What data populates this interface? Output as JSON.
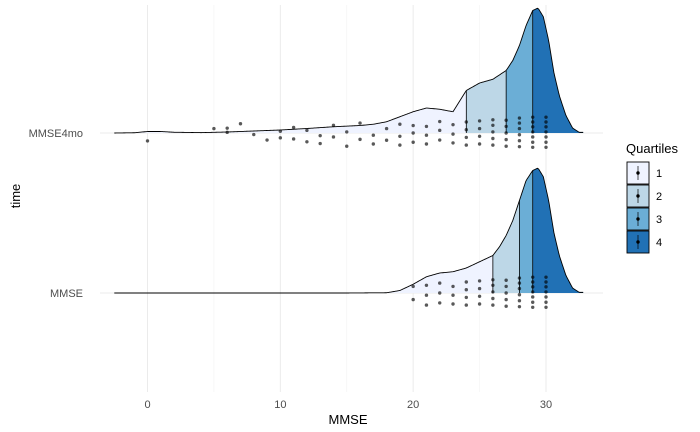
{
  "chart_data": {
    "type": "raincloud",
    "title": "",
    "xlabel": "MMSE",
    "ylabel": "time",
    "xlim": [
      -2.5,
      32.8
    ],
    "x_ticks": [
      0,
      10,
      20,
      30
    ],
    "grid": true,
    "legend": {
      "title": "Quartiles",
      "position": "right",
      "entries": [
        {
          "label": "1",
          "color": "#eff3ff"
        },
        {
          "label": "2",
          "color": "#bdd7e7"
        },
        {
          "label": "3",
          "color": "#6baed6"
        },
        {
          "label": "4",
          "color": "#2171b5"
        }
      ]
    },
    "groups": [
      {
        "name": "MMSE4mo",
        "quartile_breaks": [
          24,
          27,
          29
        ],
        "density": [
          [
            -2.5,
            0
          ],
          [
            -1,
            0.002
          ],
          [
            0,
            0.012
          ],
          [
            1,
            0.012
          ],
          [
            2,
            0.006
          ],
          [
            4,
            0.003
          ],
          [
            6,
            0.008
          ],
          [
            8,
            0.016
          ],
          [
            10,
            0.024
          ],
          [
            12,
            0.036
          ],
          [
            14,
            0.05
          ],
          [
            16,
            0.06
          ],
          [
            17,
            0.07
          ],
          [
            18,
            0.09
          ],
          [
            19,
            0.13
          ],
          [
            20,
            0.17
          ],
          [
            21,
            0.2
          ],
          [
            22,
            0.19
          ],
          [
            23,
            0.17
          ],
          [
            24,
            0.34
          ],
          [
            25,
            0.4
          ],
          [
            26,
            0.43
          ],
          [
            27,
            0.5
          ],
          [
            27.5,
            0.58
          ],
          [
            28,
            0.7
          ],
          [
            28.5,
            0.86
          ],
          [
            29,
            0.98
          ],
          [
            29.4,
            1.0
          ],
          [
            29.8,
            0.93
          ],
          [
            30.2,
            0.74
          ],
          [
            30.6,
            0.48
          ],
          [
            31,
            0.3
          ],
          [
            31.5,
            0.14
          ],
          [
            32,
            0.04
          ],
          [
            32.5,
            0.005
          ]
        ],
        "points": [
          [
            0,
            0.36
          ],
          [
            5,
            -0.2
          ],
          [
            6,
            -0.03
          ],
          [
            6,
            -0.22
          ],
          [
            7,
            -0.42
          ],
          [
            8,
            0.07
          ],
          [
            9,
            0.32
          ],
          [
            10,
            -0.08
          ],
          [
            10,
            0.22
          ],
          [
            11,
            -0.25
          ],
          [
            11,
            0.27
          ],
          [
            12,
            0.4
          ],
          [
            12,
            -0.12
          ],
          [
            13,
            0.48
          ],
          [
            13,
            0.12
          ],
          [
            14,
            -0.35
          ],
          [
            14,
            0.18
          ],
          [
            15,
            0.6
          ],
          [
            15,
            -0.05
          ],
          [
            16,
            0.29
          ],
          [
            16,
            -0.45
          ],
          [
            17,
            0.1
          ],
          [
            17,
            0.5
          ],
          [
            18,
            -0.2
          ],
          [
            18,
            0.33
          ],
          [
            19,
            0.15
          ],
          [
            19,
            -0.4
          ],
          [
            19,
            0.55
          ],
          [
            20,
            0.42
          ],
          [
            20,
            0.0
          ],
          [
            20,
            -0.34
          ],
          [
            21,
            0.5
          ],
          [
            21,
            0.1
          ],
          [
            21,
            -0.3
          ],
          [
            22,
            0.32
          ],
          [
            22,
            -0.12
          ],
          [
            22,
            -0.52
          ],
          [
            23,
            0.45
          ],
          [
            23,
            0.05
          ],
          [
            23,
            -0.38
          ],
          [
            24,
            0.55
          ],
          [
            24,
            0.2
          ],
          [
            24,
            -0.15
          ],
          [
            24,
            -0.5
          ],
          [
            25,
            0.5
          ],
          [
            25,
            0.15
          ],
          [
            25,
            -0.2
          ],
          [
            25,
            -0.55
          ],
          [
            26,
            0.55
          ],
          [
            26,
            0.25
          ],
          [
            26,
            -0.05
          ],
          [
            26,
            -0.35
          ],
          [
            26,
            -0.6
          ],
          [
            27,
            0.6
          ],
          [
            27,
            0.3
          ],
          [
            27,
            0.0
          ],
          [
            27,
            -0.3
          ],
          [
            27,
            -0.58
          ],
          [
            28,
            0.62
          ],
          [
            28,
            0.35
          ],
          [
            28,
            0.08
          ],
          [
            28,
            -0.2
          ],
          [
            28,
            -0.45
          ],
          [
            28,
            -0.68
          ],
          [
            29,
            0.65
          ],
          [
            29,
            0.42
          ],
          [
            29,
            0.18
          ],
          [
            29,
            -0.05
          ],
          [
            29,
            -0.28
          ],
          [
            29,
            -0.5
          ],
          [
            29,
            -0.72
          ],
          [
            30,
            0.65
          ],
          [
            30,
            0.42
          ],
          [
            30,
            0.18
          ],
          [
            30,
            -0.05
          ],
          [
            30,
            -0.28
          ],
          [
            30,
            -0.5
          ],
          [
            30,
            -0.72
          ]
        ]
      },
      {
        "name": "MMSE",
        "quartile_breaks": [
          26,
          28,
          29
        ],
        "density": [
          [
            -2.5,
            0
          ],
          [
            5,
            0
          ],
          [
            10,
            0
          ],
          [
            15,
            0
          ],
          [
            18,
            0.002
          ],
          [
            19,
            0.02
          ],
          [
            20,
            0.07
          ],
          [
            21,
            0.13
          ],
          [
            22,
            0.16
          ],
          [
            23,
            0.17
          ],
          [
            24,
            0.2
          ],
          [
            25,
            0.25
          ],
          [
            26,
            0.3
          ],
          [
            26.5,
            0.37
          ],
          [
            27,
            0.46
          ],
          [
            27.5,
            0.58
          ],
          [
            28,
            0.74
          ],
          [
            28.5,
            0.9
          ],
          [
            29,
            0.98
          ],
          [
            29.4,
            1.0
          ],
          [
            29.8,
            0.93
          ],
          [
            30.2,
            0.74
          ],
          [
            30.6,
            0.48
          ],
          [
            31,
            0.3
          ],
          [
            31.5,
            0.14
          ],
          [
            32,
            0.04
          ],
          [
            32.5,
            0.005
          ]
        ],
        "points": [
          [
            20,
            0.3
          ],
          [
            20,
            -0.3
          ],
          [
            21,
            0.55
          ],
          [
            21,
            0.1
          ],
          [
            21,
            -0.35
          ],
          [
            22,
            0.45
          ],
          [
            22,
            0.0
          ],
          [
            22,
            -0.45
          ],
          [
            23,
            0.5
          ],
          [
            23,
            0.1
          ],
          [
            23,
            -0.3
          ],
          [
            24,
            0.55
          ],
          [
            24,
            0.2
          ],
          [
            24,
            -0.15
          ],
          [
            24,
            -0.5
          ],
          [
            25,
            0.5
          ],
          [
            25,
            0.15
          ],
          [
            25,
            -0.2
          ],
          [
            25,
            -0.55
          ],
          [
            26,
            0.55
          ],
          [
            26,
            0.25
          ],
          [
            26,
            -0.05
          ],
          [
            26,
            -0.35
          ],
          [
            26,
            -0.6
          ],
          [
            27,
            0.6
          ],
          [
            27,
            0.3
          ],
          [
            27,
            0.0
          ],
          [
            27,
            -0.3
          ],
          [
            27,
            -0.58
          ],
          [
            28,
            0.62
          ],
          [
            28,
            0.35
          ],
          [
            28,
            0.08
          ],
          [
            28,
            -0.2
          ],
          [
            28,
            -0.45
          ],
          [
            28,
            -0.68
          ],
          [
            29,
            0.65
          ],
          [
            29,
            0.42
          ],
          [
            29,
            0.18
          ],
          [
            29,
            -0.05
          ],
          [
            29,
            -0.28
          ],
          [
            29,
            -0.5
          ],
          [
            29,
            -0.72
          ],
          [
            30,
            0.65
          ],
          [
            30,
            0.42
          ],
          [
            30,
            0.18
          ],
          [
            30,
            -0.05
          ],
          [
            30,
            -0.28
          ],
          [
            30,
            -0.5
          ],
          [
            30,
            -0.72
          ]
        ]
      }
    ]
  }
}
